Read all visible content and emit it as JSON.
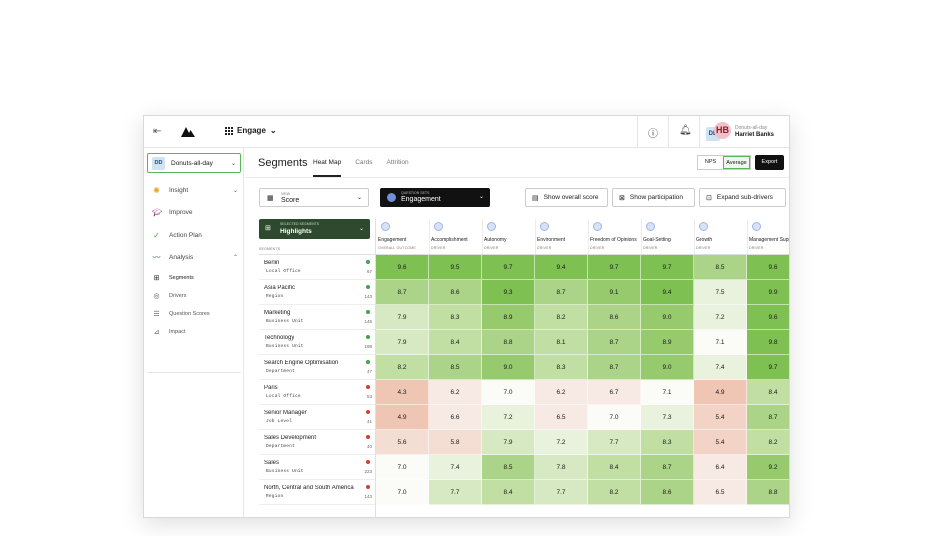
{
  "app": {
    "product": "Engage",
    "org": "Donuts-all-day",
    "org_initials": "DD",
    "user": {
      "name": "Harriet Banks",
      "initials": "HB",
      "org": "Donuts-all-day"
    }
  },
  "sidebar": {
    "items": [
      {
        "label": "Insight",
        "icon": "lightbulb-icon",
        "has_chevron": true
      },
      {
        "label": "Improve",
        "icon": "graduation-icon",
        "has_chevron": false
      },
      {
        "label": "Action Plan",
        "icon": "checkmark-icon",
        "has_chevron": false
      },
      {
        "label": "Analysis",
        "icon": "chart-line-icon",
        "has_chevron": true
      }
    ],
    "subitems": [
      {
        "label": "Segments",
        "icon": "grid-icon"
      },
      {
        "label": "Drivers",
        "icon": "circle-icon"
      },
      {
        "label": "Question Scores",
        "icon": "list-icon"
      },
      {
        "label": "Impact",
        "icon": "graph-icon"
      }
    ]
  },
  "page": {
    "title": "Segments",
    "tabs": [
      "Heat Map",
      "Cards",
      "Attrition"
    ],
    "active_tab": 0,
    "toggle": [
      "NPS",
      "Average"
    ],
    "toggle_active": 1,
    "export_label": "Export"
  },
  "controls": {
    "view": {
      "label": "VIEW",
      "value": "Score"
    },
    "question_sets": {
      "label": "QUESTION SETS",
      "value": "Engagement"
    },
    "buttons": [
      "Show overall score",
      "Show participation",
      "Expand sub-drivers"
    ]
  },
  "segments_panel": {
    "header_label": "SELECTED SEGMENTS",
    "header_value": "Highlights",
    "column_title": "SEGMENTS"
  },
  "columns": [
    {
      "name": "Engagement",
      "sub": "OVERALL OUTCOME"
    },
    {
      "name": "Accomplishment",
      "sub": "DRIVER"
    },
    {
      "name": "Autonomy",
      "sub": "DRIVER"
    },
    {
      "name": "Environment",
      "sub": "DRIVER"
    },
    {
      "name": "Freedom of Opinions",
      "sub": "DRIVER"
    },
    {
      "name": "Goal-Setting",
      "sub": "DRIVER"
    },
    {
      "name": "Growth",
      "sub": "DRIVER"
    },
    {
      "name": "Management Support",
      "sub": "DRIVER"
    }
  ],
  "rows": [
    {
      "name": "Berlin",
      "type": "Local Office",
      "count": "67",
      "status": "good",
      "values": [
        "9.6",
        "9.5",
        "9.7",
        "9.4",
        "9.7",
        "9.7",
        "8.5",
        "9.6"
      ]
    },
    {
      "name": "Asia Pacific",
      "type": "Region",
      "count": "143",
      "status": "good",
      "values": [
        "8.7",
        "8.6",
        "9.3",
        "8.7",
        "9.1",
        "9.4",
        "7.5",
        "9.9"
      ]
    },
    {
      "name": "Marketing",
      "type": "Business Unit",
      "count": "145",
      "status": "good",
      "values": [
        "7.9",
        "8.3",
        "8.9",
        "8.2",
        "8.6",
        "9.0",
        "7.2",
        "9.6"
      ]
    },
    {
      "name": "Technology",
      "type": "Business Unit",
      "count": "198",
      "status": "good",
      "values": [
        "7.9",
        "8.4",
        "8.8",
        "8.1",
        "8.7",
        "8.9",
        "7.1",
        "9.8"
      ]
    },
    {
      "name": "Search Engine Optimisation",
      "type": "Department",
      "count": "47",
      "status": "good",
      "values": [
        "8.2",
        "8.5",
        "9.0",
        "8.3",
        "8.7",
        "9.0",
        "7.4",
        "9.7"
      ]
    },
    {
      "name": "Paris",
      "type": "Local Office",
      "count": "53",
      "status": "bad",
      "values": [
        "4.3",
        "6.2",
        "7.0",
        "6.2",
        "6.7",
        "7.1",
        "4.9",
        "8.4"
      ]
    },
    {
      "name": "Senior Manager",
      "type": "Job Level",
      "count": "41",
      "status": "bad",
      "values": [
        "4.9",
        "6.6",
        "7.2",
        "6.5",
        "7.0",
        "7.3",
        "5.4",
        "8.7"
      ]
    },
    {
      "name": "Sales Development",
      "type": "Department",
      "count": "40",
      "status": "bad",
      "values": [
        "5.6",
        "5.8",
        "7.9",
        "7.2",
        "7.7",
        "8.3",
        "5.4",
        "8.2"
      ]
    },
    {
      "name": "Sales",
      "type": "Business Unit",
      "count": "223",
      "status": "bad",
      "values": [
        "7.0",
        "7.4",
        "8.5",
        "7.8",
        "8.4",
        "8.7",
        "6.4",
        "9.2"
      ]
    },
    {
      "name": "North, Central and South America",
      "type": "Region",
      "count": "143",
      "status": "bad",
      "values": [
        "7.0",
        "7.7",
        "8.4",
        "7.7",
        "8.2",
        "8.6",
        "6.5",
        "8.8"
      ]
    }
  ],
  "colors": {
    "accent_green": "#59b45a",
    "dark_green": "#2e4a2e",
    "status_good": "#3fa347",
    "status_bad": "#d23f31"
  }
}
